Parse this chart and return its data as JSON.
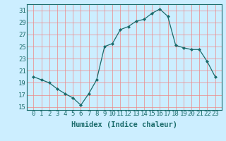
{
  "x": [
    0,
    1,
    2,
    3,
    4,
    5,
    6,
    7,
    8,
    9,
    10,
    11,
    12,
    13,
    14,
    15,
    16,
    17,
    18,
    19,
    20,
    21,
    22,
    23
  ],
  "y": [
    20.0,
    19.5,
    19.0,
    18.0,
    17.2,
    16.5,
    15.3,
    17.2,
    19.5,
    25.0,
    25.5,
    27.8,
    28.3,
    29.2,
    29.5,
    30.5,
    31.2,
    30.0,
    25.2,
    24.8,
    24.5,
    24.5,
    22.5,
    20.0
  ],
  "xlabel": "Humidex (Indice chaleur)",
  "ylim": [
    14.5,
    32
  ],
  "yticks": [
    15,
    17,
    19,
    21,
    23,
    25,
    27,
    29,
    31
  ],
  "xticks": [
    0,
    1,
    2,
    3,
    4,
    5,
    6,
    7,
    8,
    9,
    10,
    11,
    12,
    13,
    14,
    15,
    16,
    17,
    18,
    19,
    20,
    21,
    22,
    23
  ],
  "line_color": "#1a6b6b",
  "marker_color": "#1a6b6b",
  "bg_color": "#cceeff",
  "grid_color_v": "#ee8888",
  "grid_color_h": "#ee8888",
  "xlabel_fontsize": 7.5,
  "tick_fontsize": 6.5
}
